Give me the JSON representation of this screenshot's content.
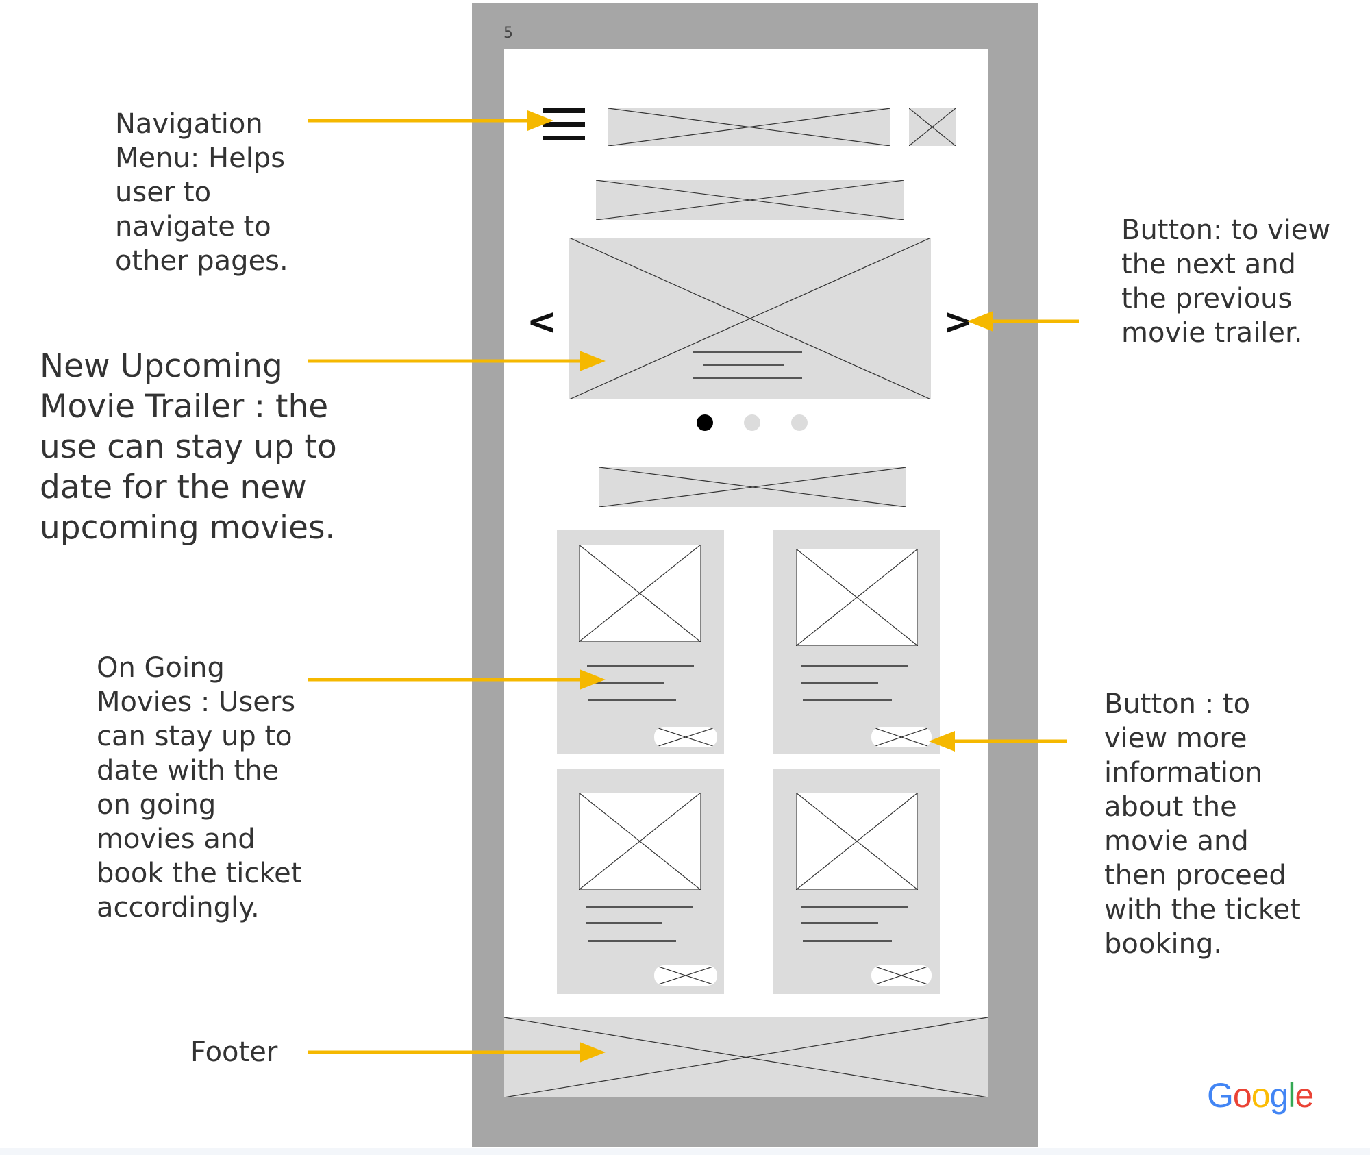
{
  "page_number": "5",
  "notes": {
    "navigation": "Navigation\nMenu: Helps\nuser to\nnavigate to\nother pages.",
    "trailer": "New Upcoming\nMovie Trailer : the\nuse can stay up to\ndate for the new\nupcoming movies.",
    "ongoing": "On Going\nMovies : Users\ncan stay up to\ndate with the\non going\nmovies and\nbook the ticket\naccordingly.",
    "footer": "Footer",
    "next_prev_button": "Button: to view\nthe next and\nthe previous\nmovie trailer.",
    "more_info_button": "Button : to\nview more\ninformation\nabout the\nmovie and\nthen proceed\nwith the ticket\nbooking."
  },
  "logo": {
    "letters": [
      "G",
      "o",
      "o",
      "g",
      "l",
      "e"
    ],
    "colors": [
      "#4285F4",
      "#EA4335",
      "#FBBC05",
      "#4285F4",
      "#34A853",
      "#EA4335"
    ]
  },
  "wireframe": {
    "prev_glyph": "<",
    "next_glyph": ">",
    "carousel_dots": [
      true,
      false,
      false
    ]
  },
  "colors": {
    "arrow": "#F5B800",
    "frame": "#A6A6A6",
    "placeholder": "#DCDCDC",
    "dot_active": "#000000",
    "dot_inactive": "#DCDCDC"
  }
}
